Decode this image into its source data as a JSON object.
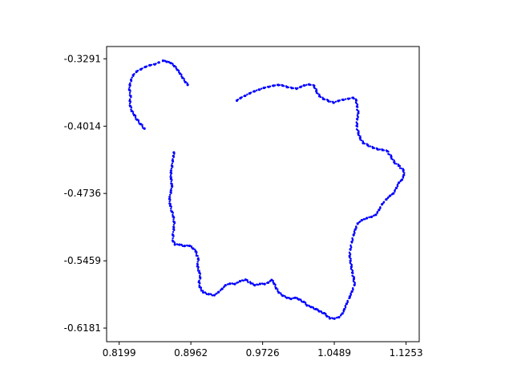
{
  "chart_data": {
    "type": "scatter",
    "title": "",
    "xlabel": "",
    "ylabel": "",
    "xlim": [
      0.8065,
      1.1393
    ],
    "ylim": [
      -0.6327,
      -0.3159
    ],
    "xticks": [
      "0.8199",
      "0.8962",
      "0.9726",
      "1.0489",
      "1.1253"
    ],
    "yticks": [
      "-0.3291",
      "-0.4014",
      "-0.4736",
      "-0.5459",
      "-0.6181"
    ],
    "grid": false,
    "marker_color": "#0000ff",
    "series": [
      {
        "points": [
          [
            0.8781,
            -0.4296
          ],
          [
            0.8776,
            -0.4334
          ],
          [
            0.8768,
            -0.4384
          ],
          [
            0.8762,
            -0.4443
          ],
          [
            0.8749,
            -0.4512
          ],
          [
            0.8751,
            -0.4581
          ],
          [
            0.8761,
            -0.4655
          ],
          [
            0.8748,
            -0.4723
          ],
          [
            0.8734,
            -0.4795
          ],
          [
            0.8743,
            -0.4868
          ],
          [
            0.8761,
            -0.4932
          ],
          [
            0.8774,
            -0.4985
          ],
          [
            0.8785,
            -0.5044
          ],
          [
            0.8779,
            -0.5119
          ],
          [
            0.8771,
            -0.5183
          ],
          [
            0.8773,
            -0.525
          ],
          [
            0.8792,
            -0.5284
          ],
          [
            0.8842,
            -0.5286
          ],
          [
            0.8896,
            -0.5299
          ],
          [
            0.8948,
            -0.5298
          ],
          [
            0.8986,
            -0.5328
          ],
          [
            0.9013,
            -0.5358
          ],
          [
            0.904,
            -0.544
          ],
          [
            0.9032,
            -0.5518
          ],
          [
            0.9053,
            -0.5587
          ],
          [
            0.9061,
            -0.5639
          ],
          [
            0.9048,
            -0.5688
          ],
          [
            0.9056,
            -0.574
          ],
          [
            0.9094,
            -0.5798
          ],
          [
            0.9152,
            -0.5817
          ],
          [
            0.9212,
            -0.5828
          ],
          [
            0.9256,
            -0.5795
          ],
          [
            0.9295,
            -0.576
          ],
          [
            0.933,
            -0.5722
          ],
          [
            0.9378,
            -0.5705
          ],
          [
            0.943,
            -0.5708
          ],
          [
            0.9485,
            -0.5678
          ],
          [
            0.9544,
            -0.5662
          ],
          [
            0.9601,
            -0.57
          ],
          [
            0.9642,
            -0.5721
          ],
          [
            0.9698,
            -0.5707
          ],
          [
            0.9748,
            -0.5708
          ],
          [
            0.9785,
            -0.5693
          ],
          [
            0.9822,
            -0.5665
          ],
          [
            0.9848,
            -0.5705
          ],
          [
            0.9869,
            -0.5754
          ],
          [
            0.9898,
            -0.58
          ],
          [
            0.9939,
            -0.5833
          ],
          [
            0.9985,
            -0.5856
          ],
          [
            1.0028,
            -0.5868
          ],
          [
            1.0073,
            -0.5856
          ],
          [
            1.0111,
            -0.5873
          ],
          [
            1.0164,
            -0.59
          ],
          [
            1.0198,
            -0.5938
          ],
          [
            1.0242,
            -0.5955
          ],
          [
            1.0294,
            -0.5977
          ],
          [
            1.0329,
            -0.6001
          ],
          [
            1.0381,
            -0.6021
          ],
          [
            1.0411,
            -0.6054
          ],
          [
            1.0441,
            -0.6076
          ],
          [
            1.049,
            -0.6079
          ],
          [
            1.0539,
            -0.6064
          ],
          [
            1.0576,
            -0.6024
          ],
          [
            1.0596,
            -0.5979
          ],
          [
            1.062,
            -0.592
          ],
          [
            1.0654,
            -0.5843
          ],
          [
            1.0677,
            -0.5789
          ],
          [
            1.0704,
            -0.5717
          ],
          [
            1.0697,
            -0.5653
          ],
          [
            1.0681,
            -0.5586
          ],
          [
            1.0671,
            -0.5523
          ],
          [
            1.0661,
            -0.5459
          ],
          [
            1.0652,
            -0.5408
          ],
          [
            1.066,
            -0.5335
          ],
          [
            1.0676,
            -0.5255
          ],
          [
            1.0695,
            -0.518
          ],
          [
            1.0712,
            -0.5123
          ],
          [
            1.0738,
            -0.5059
          ],
          [
            1.0781,
            -0.5024
          ],
          [
            1.0835,
            -0.5001
          ],
          [
            1.0886,
            -0.4987
          ],
          [
            1.0931,
            -0.4965
          ],
          [
            1.0965,
            -0.4913
          ],
          [
            1.0998,
            -0.4852
          ],
          [
            1.1043,
            -0.48
          ],
          [
            1.1082,
            -0.4761
          ],
          [
            1.1118,
            -0.4736
          ],
          [
            1.115,
            -0.4677
          ],
          [
            1.1176,
            -0.4621
          ],
          [
            1.1209,
            -0.4589
          ],
          [
            1.1229,
            -0.4538
          ],
          [
            1.1224,
            -0.4487
          ],
          [
            1.1175,
            -0.4438
          ],
          [
            1.1127,
            -0.44
          ],
          [
            1.1095,
            -0.4343
          ],
          [
            1.1053,
            -0.4283
          ],
          [
            1.1002,
            -0.4269
          ],
          [
            1.0948,
            -0.426
          ],
          [
            1.0901,
            -0.4246
          ],
          [
            1.0845,
            -0.4217
          ],
          [
            1.0796,
            -0.4195
          ],
          [
            1.0764,
            -0.414
          ],
          [
            1.0745,
            -0.4088
          ],
          [
            1.0728,
            -0.401
          ],
          [
            1.0733,
            -0.3937
          ],
          [
            1.0744,
            -0.3874
          ],
          [
            1.0731,
            -0.3802
          ],
          [
            1.0723,
            -0.3738
          ],
          [
            1.0689,
            -0.371
          ],
          [
            1.064,
            -0.372
          ],
          [
            1.0581,
            -0.373
          ],
          [
            1.0532,
            -0.3743
          ],
          [
            1.048,
            -0.3762
          ],
          [
            1.0423,
            -0.374
          ],
          [
            1.0372,
            -0.3722
          ],
          [
            1.0331,
            -0.3692
          ],
          [
            1.0298,
            -0.3637
          ],
          [
            1.0274,
            -0.3581
          ],
          [
            1.0222,
            -0.3567
          ],
          [
            1.0168,
            -0.3576
          ],
          [
            1.013,
            -0.3594
          ],
          [
            1.0087,
            -0.3612
          ],
          [
            1.0037,
            -0.3605
          ],
          [
            0.9986,
            -0.3595
          ],
          [
            0.9938,
            -0.3578
          ],
          [
            0.9893,
            -0.3572
          ],
          [
            0.9842,
            -0.358
          ],
          [
            0.9791,
            -0.3592
          ],
          [
            0.9741,
            -0.3603
          ],
          [
            0.9689,
            -0.3622
          ],
          [
            0.9637,
            -0.364
          ],
          [
            0.9588,
            -0.3662
          ],
          [
            0.9538,
            -0.3688
          ],
          [
            0.9491,
            -0.3712
          ],
          [
            0.9452,
            -0.3739
          ],
          [
            0.8622,
            -0.333
          ],
          [
            0.8577,
            -0.3351
          ],
          [
            0.8527,
            -0.336
          ],
          [
            0.8478,
            -0.3378
          ],
          [
            0.8431,
            -0.3403
          ],
          [
            0.8385,
            -0.3427
          ],
          [
            0.8348,
            -0.3467
          ],
          [
            0.8326,
            -0.3519
          ],
          [
            0.8312,
            -0.357
          ],
          [
            0.8308,
            -0.3625
          ],
          [
            0.8321,
            -0.369
          ],
          [
            0.8312,
            -0.3743
          ],
          [
            0.8318,
            -0.38
          ],
          [
            0.8331,
            -0.3851
          ],
          [
            0.8359,
            -0.3895
          ],
          [
            0.839,
            -0.3944
          ],
          [
            0.8427,
            -0.3992
          ],
          [
            0.8468,
            -0.4039
          ],
          [
            0.8666,
            -0.3312
          ],
          [
            0.8707,
            -0.3323
          ],
          [
            0.8749,
            -0.3337
          ],
          [
            0.8786,
            -0.337
          ],
          [
            0.8818,
            -0.3409
          ],
          [
            0.8846,
            -0.345
          ],
          [
            0.8873,
            -0.3495
          ],
          [
            0.8903,
            -0.3541
          ],
          [
            0.8928,
            -0.357
          ]
        ]
      }
    ]
  }
}
